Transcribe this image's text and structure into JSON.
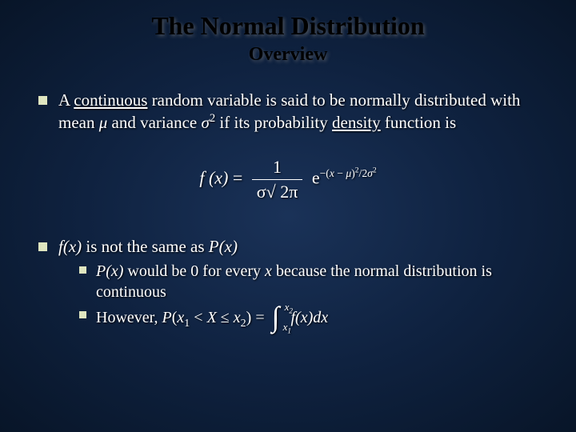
{
  "title": "The Normal Distribution",
  "subtitle": "Overview",
  "bullet1": {
    "prefix": "A ",
    "underlined1": "continuous",
    "mid1": " random variable is said to be normally distributed with mean ",
    "mu": "μ",
    "mid2": " and variance ",
    "sigma": "σ",
    "sq": "2",
    "mid3": " if its probability ",
    "underlined2": "density",
    "suffix": " function is"
  },
  "formula": {
    "fx": "f (x)",
    "eq": " = ",
    "num": "1",
    "den_sigma": "σ",
    "den_sqrt": "√",
    "den_2pi": " 2π",
    "e": "e",
    "exp_neg": "−(",
    "exp_x": "x",
    "exp_minus": " − ",
    "exp_mu": "μ",
    "exp_close": ")",
    "exp_sq": "2",
    "exp_slash": "/2",
    "exp_sigma": "σ",
    "exp_sigsq": "2"
  },
  "bullet2": {
    "fx": "f(x)",
    "mid": " is not the same as ",
    "px": "P(x)"
  },
  "sub1": {
    "px": "P(x)",
    "mid1": " would be 0 for every ",
    "x": "x",
    "mid2": " because the normal distribution is continuous"
  },
  "sub2": {
    "prefix": "However, ",
    "p": "P",
    "open": "(",
    "x1": "x",
    "s1": "1",
    "lt": " < ",
    "X": "X",
    "le": " ≤ ",
    "x2": "x",
    "s2": "2",
    "close": ")",
    "eq": " = ",
    "int_upper_x": "x",
    "int_upper_n": "2",
    "int_lower_x": "x",
    "int_lower_n": "1",
    "fx": "f(x)dx"
  },
  "colors": {
    "bullet": "#dfe6c0",
    "text": "#ffffff",
    "title": "#000000"
  }
}
